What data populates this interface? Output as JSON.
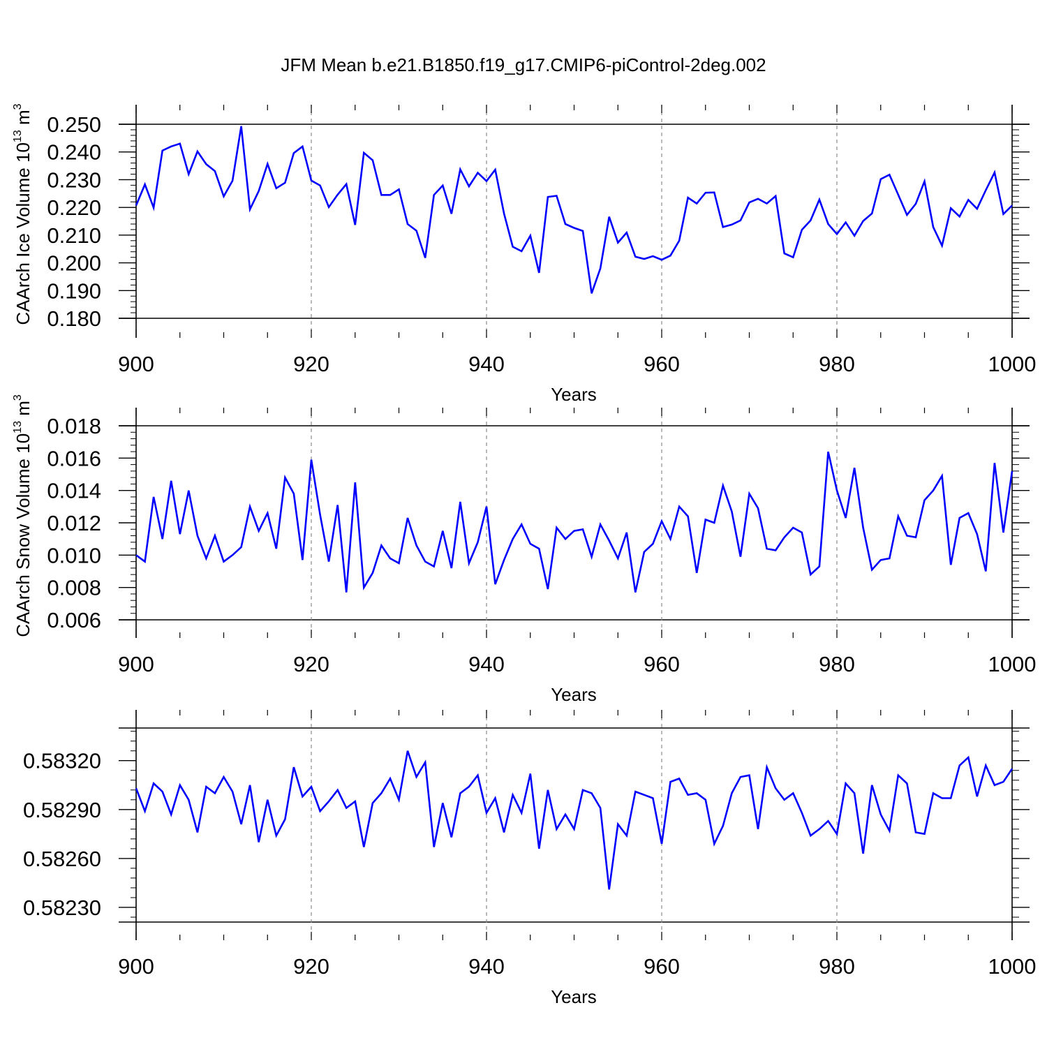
{
  "title": "JFM Mean b.e21.B1850.f19_g17.CMIP6-piControl-2deg.002",
  "colors": {
    "series": "#0000ff",
    "axes": "#000000",
    "grid": "#8a8a8a"
  },
  "chart_data": [
    {
      "type": "line",
      "ylabel": "CAArch Ice Volume 10",
      "ylabel_exp": "13",
      "ylabel_unit": "m",
      "ylabel_unit_exp": "3",
      "xlabel": "Years",
      "xlim": [
        900,
        1000
      ],
      "ylim": [
        0.18,
        0.25
      ],
      "yticks": [
        "0.180",
        "0.190",
        "0.200",
        "0.210",
        "0.220",
        "0.230",
        "0.240",
        "0.250"
      ],
      "ytick_values": [
        0.18,
        0.19,
        0.2,
        0.21,
        0.22,
        0.23,
        0.24,
        0.25
      ],
      "xticks": [
        "900",
        "920",
        "940",
        "960",
        "980",
        "1000"
      ],
      "xtick_values": [
        900,
        920,
        940,
        960,
        980,
        1000
      ],
      "grid_x": [
        920,
        940,
        960,
        980
      ],
      "series": [
        {
          "x_start": 900,
          "values": [
            0.2207,
            0.2283,
            0.2199,
            0.2405,
            0.242,
            0.243,
            0.232,
            0.2402,
            0.2356,
            0.2331,
            0.224,
            0.2296,
            0.2493,
            0.2193,
            0.2259,
            0.2357,
            0.2269,
            0.2289,
            0.2396,
            0.242,
            0.2297,
            0.2279,
            0.2201,
            0.2246,
            0.2284,
            0.2137,
            0.2397,
            0.237,
            0.2245,
            0.2245,
            0.2265,
            0.214,
            0.2116,
            0.2018,
            0.2245,
            0.2279,
            0.2177,
            0.2337,
            0.2276,
            0.2325,
            0.2295,
            0.2336,
            0.2178,
            0.2058,
            0.2042,
            0.2098,
            0.1964,
            0.2238,
            0.2242,
            0.214,
            0.2126,
            0.2115,
            0.189,
            0.198,
            0.2166,
            0.2073,
            0.2109,
            0.2022,
            0.2014,
            0.2024,
            0.2011,
            0.2026,
            0.208,
            0.2235,
            0.2214,
            0.2253,
            0.2254,
            0.2129,
            0.2138,
            0.2153,
            0.2218,
            0.2231,
            0.2214,
            0.2241,
            0.2034,
            0.202,
            0.2119,
            0.2153,
            0.2228,
            0.214,
            0.2104,
            0.2146,
            0.2098,
            0.2151,
            0.2178,
            0.2302,
            0.2318,
            0.2246,
            0.2173,
            0.2213,
            0.2294,
            0.2129,
            0.2062,
            0.2197,
            0.2167,
            0.2227,
            0.2195,
            0.2262,
            0.2326,
            0.2176,
            0.2207
          ]
        }
      ]
    },
    {
      "type": "line",
      "ylabel": "CAArch Snow Volume 10",
      "ylabel_exp": "13",
      "ylabel_unit": "m",
      "ylabel_unit_exp": "3",
      "xlabel": "Years",
      "xlim": [
        900,
        1000
      ],
      "ylim": [
        0.006,
        0.018
      ],
      "yticks": [
        "0.006",
        "0.008",
        "0.010",
        "0.012",
        "0.014",
        "0.016",
        "0.018"
      ],
      "ytick_values": [
        0.006,
        0.008,
        0.01,
        0.012,
        0.014,
        0.016,
        0.018
      ],
      "xticks": [
        "900",
        "920",
        "940",
        "960",
        "980",
        "1000"
      ],
      "xtick_values": [
        900,
        920,
        940,
        960,
        980,
        1000
      ],
      "grid_x": [
        920,
        940,
        960,
        980
      ],
      "series": [
        {
          "x_start": 900,
          "values": [
            0.01,
            0.0096,
            0.0136,
            0.011,
            0.0146,
            0.0113,
            0.014,
            0.0112,
            0.0098,
            0.0112,
            0.0096,
            0.01,
            0.0105,
            0.013,
            0.0115,
            0.0126,
            0.0104,
            0.0148,
            0.0138,
            0.0097,
            0.0159,
            0.0125,
            0.0096,
            0.0131,
            0.0077,
            0.0145,
            0.008,
            0.0089,
            0.0106,
            0.0098,
            0.0095,
            0.0123,
            0.0106,
            0.0096,
            0.0093,
            0.0115,
            0.0092,
            0.0133,
            0.0095,
            0.0108,
            0.013,
            0.0082,
            0.0097,
            0.011,
            0.0119,
            0.0107,
            0.0104,
            0.0079,
            0.0117,
            0.011,
            0.0115,
            0.0116,
            0.0099,
            0.0119,
            0.0109,
            0.0098,
            0.0114,
            0.0077,
            0.0102,
            0.0107,
            0.0121,
            0.011,
            0.013,
            0.0124,
            0.0089,
            0.0122,
            0.012,
            0.0143,
            0.0127,
            0.0099,
            0.0138,
            0.0129,
            0.0104,
            0.0103,
            0.0111,
            0.0117,
            0.0114,
            0.0088,
            0.0093,
            0.0164,
            0.014,
            0.0123,
            0.0154,
            0.0117,
            0.0091,
            0.0097,
            0.0098,
            0.0124,
            0.0112,
            0.0111,
            0.0134,
            0.014,
            0.0149,
            0.0094,
            0.0123,
            0.0126,
            0.0113,
            0.009,
            0.0157,
            0.0114,
            0.0152
          ]
        }
      ]
    },
    {
      "type": "line",
      "ylabel": "",
      "xlabel": "Years",
      "xlim": [
        900,
        1000
      ],
      "ylim": [
        0.58221,
        0.5834
      ],
      "yticks": [
        "0.58230",
        "0.58260",
        "0.58290",
        "0.58320"
      ],
      "ytick_values": [
        0.5823,
        0.5826,
        0.5829,
        0.5832
      ],
      "xticks": [
        "900",
        "920",
        "940",
        "960",
        "980",
        "1000"
      ],
      "xtick_values": [
        900,
        920,
        940,
        960,
        980,
        1000
      ],
      "grid_x": [
        920,
        940,
        960,
        980
      ],
      "series": [
        {
          "x_start": 900,
          "values": [
            0.58303,
            0.58289,
            0.58306,
            0.58301,
            0.58287,
            0.58305,
            0.58296,
            0.58276,
            0.58304,
            0.583,
            0.5831,
            0.58301,
            0.58281,
            0.58305,
            0.5827,
            0.58296,
            0.58274,
            0.58284,
            0.58316,
            0.58298,
            0.58304,
            0.58289,
            0.58295,
            0.58302,
            0.58291,
            0.58295,
            0.58267,
            0.58294,
            0.583,
            0.58309,
            0.58296,
            0.58326,
            0.5831,
            0.58319,
            0.58267,
            0.58294,
            0.58273,
            0.583,
            0.58304,
            0.58311,
            0.58288,
            0.58297,
            0.58276,
            0.58299,
            0.58288,
            0.58312,
            0.58266,
            0.58302,
            0.58278,
            0.58287,
            0.58278,
            0.58302,
            0.583,
            0.58291,
            0.58241,
            0.58281,
            0.58274,
            0.58301,
            0.58299,
            0.58297,
            0.58269,
            0.58307,
            0.58309,
            0.58299,
            0.583,
            0.58296,
            0.58269,
            0.5828,
            0.583,
            0.5831,
            0.58311,
            0.58278,
            0.58316,
            0.58303,
            0.58296,
            0.583,
            0.58288,
            0.58274,
            0.58278,
            0.58283,
            0.58275,
            0.58306,
            0.583,
            0.58263,
            0.58305,
            0.58287,
            0.58277,
            0.58311,
            0.58306,
            0.58276,
            0.58275,
            0.583,
            0.58297,
            0.58297,
            0.58317,
            0.58322,
            0.58298,
            0.58317,
            0.58305,
            0.58307,
            0.58315
          ]
        }
      ]
    }
  ]
}
